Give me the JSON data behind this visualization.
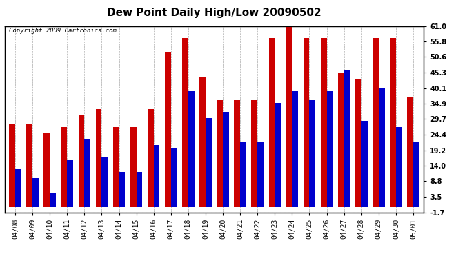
{
  "title": "Dew Point Daily High/Low 20090502",
  "copyright": "Copyright 2009 Cartronics.com",
  "dates": [
    "04/08",
    "04/09",
    "04/10",
    "04/11",
    "04/12",
    "04/13",
    "04/14",
    "04/15",
    "04/16",
    "04/17",
    "04/18",
    "04/19",
    "04/20",
    "04/21",
    "04/22",
    "04/23",
    "04/24",
    "04/25",
    "04/26",
    "04/27",
    "04/28",
    "04/29",
    "04/30",
    "05/01"
  ],
  "high": [
    28,
    28,
    25,
    27,
    31,
    33,
    27,
    27,
    33,
    52,
    57,
    44,
    36,
    36,
    36,
    57,
    61,
    57,
    57,
    45,
    43,
    57,
    57,
    37
  ],
  "low": [
    13,
    10,
    5,
    16,
    23,
    17,
    12,
    12,
    21,
    20,
    39,
    30,
    32,
    22,
    22,
    35,
    39,
    36,
    39,
    46,
    29,
    40,
    27,
    22
  ],
  "ylim_min": -1.7,
  "ylim_max": 61.0,
  "yticks": [
    -1.7,
    3.5,
    8.8,
    14.0,
    19.2,
    24.4,
    29.7,
    34.9,
    40.1,
    45.3,
    50.6,
    55.8,
    61.0
  ],
  "bar_width": 0.35,
  "high_color": "#cc0000",
  "low_color": "#0000cc",
  "bg_color": "#ffffff",
  "hgrid_color": "#ffffff",
  "vgrid_color": "#aaaaaa",
  "title_fontsize": 11,
  "axis_fontsize": 7,
  "copyright_fontsize": 6.5
}
